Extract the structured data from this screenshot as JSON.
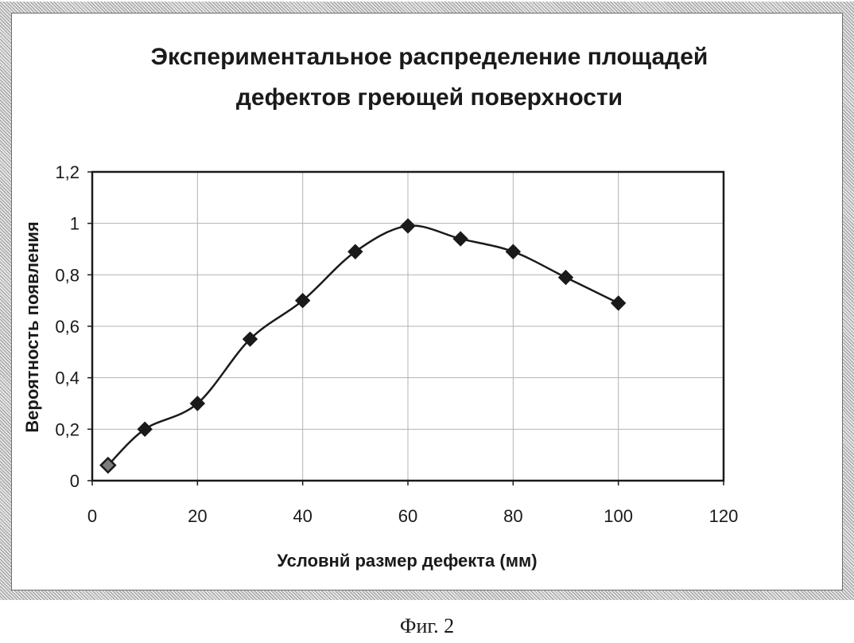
{
  "chart_data": {
    "type": "line",
    "title": "Экспериментальное распределение площадей дефектов греющей поверхности",
    "title_lines": [
      "Экспериментальное распределение площадей",
      "дефектов греющей поверхности"
    ],
    "xlabel": "Условнй размер дефекта (мм)",
    "ylabel": "Вероятность появления",
    "xlim": [
      0,
      120
    ],
    "ylim": [
      0,
      1.2
    ],
    "x_ticks": [
      0,
      20,
      40,
      60,
      80,
      100,
      120
    ],
    "x_tick_labels": [
      "0",
      "20",
      "40",
      "60",
      "80",
      "100",
      "120"
    ],
    "y_ticks": [
      0,
      0.2,
      0.4,
      0.6,
      0.8,
      1.0,
      1.2
    ],
    "y_tick_labels": [
      "0",
      "0,2",
      "0,4",
      "0,6",
      "0,8",
      "1",
      "1,2"
    ],
    "grid": true,
    "legend": "none",
    "series": [
      {
        "x": [
          3,
          10,
          20,
          30,
          40,
          50,
          60,
          70,
          80,
          90,
          100
        ],
        "y": [
          0.06,
          0.2,
          0.3,
          0.55,
          0.7,
          0.89,
          0.99,
          0.94,
          0.89,
          0.79,
          0.69
        ],
        "marker": "diamond",
        "color": "#1a1a1a"
      }
    ]
  },
  "caption": "Фиг. 2"
}
